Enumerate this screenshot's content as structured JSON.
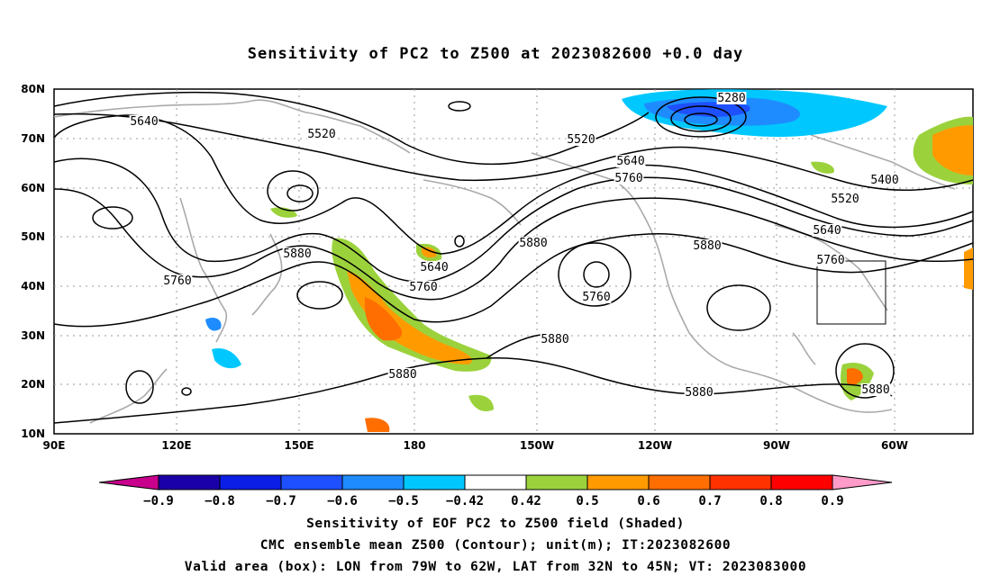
{
  "title": "Sensitivity of PC2 to Z500 at 2023082600 +0.0 day",
  "map": {
    "lat_labels": [
      "80N",
      "70N",
      "60N",
      "50N",
      "40N",
      "30N",
      "20N",
      "10N"
    ],
    "lon_labels": [
      "90E",
      "120E",
      "150E",
      "180",
      "150W",
      "120W",
      "90W",
      "60W"
    ],
    "contour_labels": [
      {
        "text": "5640"
      },
      {
        "text": "5520"
      },
      {
        "text": "5520"
      },
      {
        "text": "5280"
      },
      {
        "text": "5640"
      },
      {
        "text": "5760"
      },
      {
        "text": "5400"
      },
      {
        "text": "5520"
      },
      {
        "text": "5640"
      },
      {
        "text": "5760"
      },
      {
        "text": "5760"
      },
      {
        "text": "5880"
      },
      {
        "text": "5640"
      },
      {
        "text": "5760"
      },
      {
        "text": "5880"
      },
      {
        "text": "5760"
      },
      {
        "text": "5880"
      },
      {
        "text": "5880"
      },
      {
        "text": "5880"
      },
      {
        "text": "5880"
      },
      {
        "text": "5880"
      }
    ],
    "valid_box": {
      "lon_west": "79W",
      "lon_east": "62W",
      "lat_south": "32N",
      "lat_north": "45N"
    }
  },
  "colorbar": {
    "labels": [
      "-0.9",
      "-0.8",
      "-0.7",
      "-0.6",
      "-0.5",
      "-0.42",
      "0.42",
      "0.5",
      "0.6",
      "0.7",
      "0.8",
      "0.9"
    ],
    "colors": [
      "#c8008c",
      "#1a00a8",
      "#0a1ee6",
      "#1e50ff",
      "#1e8cff",
      "#00c8ff",
      "#ffffff",
      "#9bd23c",
      "#ff9b00",
      "#ff6e00",
      "#ff3200",
      "#ff0000",
      "#ff9bc8"
    ]
  },
  "captions": [
    "Sensitivity of EOF PC2 to Z500 field (Shaded)",
    "CMC ensemble mean Z500 (Contour); unit(m); IT:2023082600",
    "Valid area (box): LON from 79W to 62W, LAT from 32N to 45N; VT: 2023083000"
  ]
}
